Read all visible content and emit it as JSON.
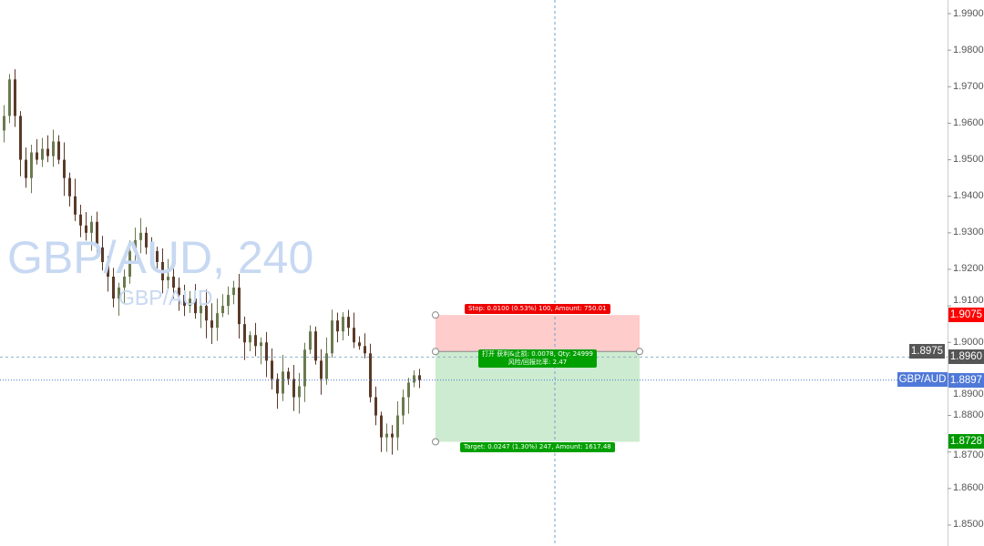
{
  "symbol": "GBP/AUD",
  "watermark": {
    "title": "GBP/AUD, 240",
    "subtitle": "GBP/AUD"
  },
  "price_axis": {
    "ticks": [
      "1.9900",
      "1.9800",
      "1.9700",
      "1.9600",
      "1.9500",
      "1.9400",
      "1.9300",
      "1.9200",
      "1.9100",
      "1.9000",
      "1.8900",
      "1.8800",
      "1.8700",
      "1.8600",
      "1.8500"
    ],
    "tick_values": [
      1.99,
      1.98,
      1.97,
      1.96,
      1.95,
      1.94,
      1.93,
      1.92,
      1.91,
      1.9,
      1.89,
      1.88,
      1.87,
      1.86,
      1.85
    ],
    "range": [
      1.85,
      1.99
    ]
  },
  "price_tags": {
    "stop": {
      "text": "1.9075",
      "value": 1.9075,
      "color": "#ff0000"
    },
    "entry": {
      "text": "1.8975",
      "value": 1.8975,
      "color": "#555555"
    },
    "crosshair": {
      "text": "1.8960",
      "value": 1.896,
      "color": "#555555"
    },
    "current": {
      "text": "1.8897",
      "value": 1.8897,
      "color": "#4f79d8"
    },
    "target": {
      "text": "1.8728",
      "value": 1.8728,
      "color": "#009900"
    }
  },
  "position_tool": {
    "stop_label": "Stop: 0.0100 (0.53%) 100, Amount: 750.01",
    "entry_label_line1": "打开 获利&止损: 0.0078, Qty: 24999",
    "entry_label_line2": "风险/回报比率: 2.47",
    "target_label": "Target: 0.0247 (1.30%) 247, Amount: 1617.48",
    "stop_fill": "#ffcccc",
    "target_fill": "#cdebd0"
  },
  "candle_colors": {
    "up": "#6b7a4e",
    "down": "#5b3a29"
  },
  "closes": [
    1.962,
    1.972,
    1.962,
    1.95,
    1.945,
    1.952,
    1.95,
    1.953,
    1.951,
    1.955,
    1.95,
    1.945,
    1.94,
    1.935,
    1.932,
    1.93,
    1.933,
    1.926,
    1.922,
    1.918,
    1.912,
    1.915,
    1.918,
    1.925,
    1.928,
    1.93,
    1.926,
    1.925,
    1.922,
    1.917,
    1.918,
    1.915,
    1.913,
    1.91,
    1.912,
    1.908,
    1.91,
    1.906,
    1.904,
    1.908,
    1.91,
    1.913,
    1.915,
    1.905,
    1.9,
    1.902,
    1.899,
    1.9,
    1.895,
    1.89,
    1.886,
    1.892,
    1.89,
    1.885,
    1.888,
    1.898,
    1.903,
    1.895,
    1.89,
    1.897,
    1.906,
    1.903,
    1.907,
    1.904,
    1.9,
    1.899,
    1.897,
    1.885,
    1.88,
    1.874,
    1.875,
    1.874,
    1.88,
    1.885,
    1.889,
    1.891,
    1.8897
  ]
}
